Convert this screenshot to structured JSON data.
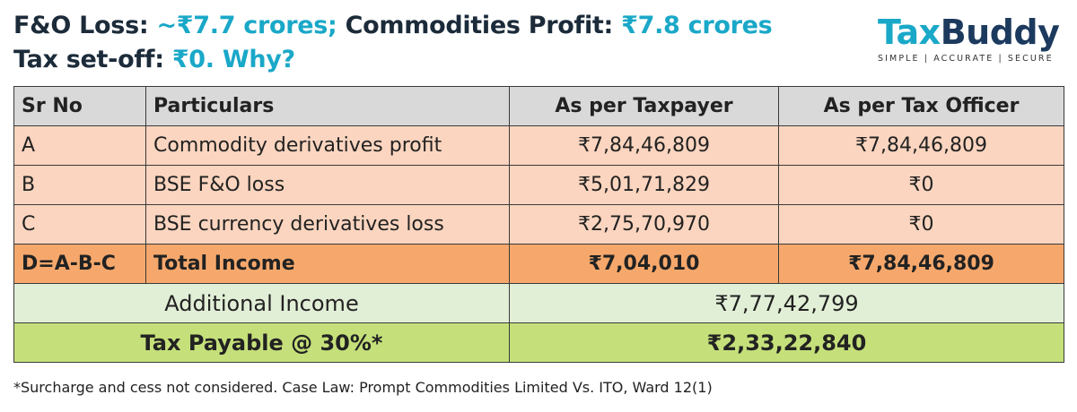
{
  "title": {
    "l1_a": "F&O Loss: ",
    "l1_b": "~₹7.7 crores;",
    "l1_c": " Commodities Profit: ",
    "l1_d": "₹7.8 crores",
    "l2_a": "Tax set-off: ",
    "l2_b": "₹0. Why?"
  },
  "logo": {
    "word_part1": "Tax",
    "word_part2": "Bu",
    "word_part3": "ddy",
    "tagline": "SIMPLE | ACCURATE | SECURE"
  },
  "table": {
    "headers": [
      "Sr No",
      "Particulars",
      "As per Taxpayer",
      "As per Tax Officer"
    ],
    "rows": [
      {
        "sr": "A",
        "particular": "Commodity derivatives profit",
        "taxpayer": "₹7,84,46,809",
        "officer": "₹7,84,46,809"
      },
      {
        "sr": "B",
        "particular": "BSE F&O loss",
        "taxpayer": "₹5,01,71,829",
        "officer": "₹0"
      },
      {
        "sr": "C",
        "particular": "BSE currency derivatives loss",
        "taxpayer": "₹2,75,70,970",
        "officer": "₹0"
      }
    ],
    "total": {
      "sr": "D=A-B-C",
      "particular": "Total Income",
      "taxpayer": "₹7,04,010",
      "officer": "₹7,84,46,809"
    },
    "additional": {
      "label": "Additional Income",
      "value": "₹7,77,42,799"
    },
    "tax": {
      "label": "Tax Payable @ 30%*",
      "value": "₹2,33,22,840"
    }
  },
  "footnote": "*Surcharge and cess not considered. Case Law: Prompt Commodities Limited Vs. ITO, Ward 12(1)",
  "colors": {
    "accent": "#1aa8c8",
    "title_dark": "#1c2b3a",
    "header_bg": "#d9d9d9",
    "row_bg": "#fbd5bf",
    "total_bg": "#f6a86c",
    "additional_bg": "#e2efd7",
    "tax_bg": "#c5e07a"
  }
}
